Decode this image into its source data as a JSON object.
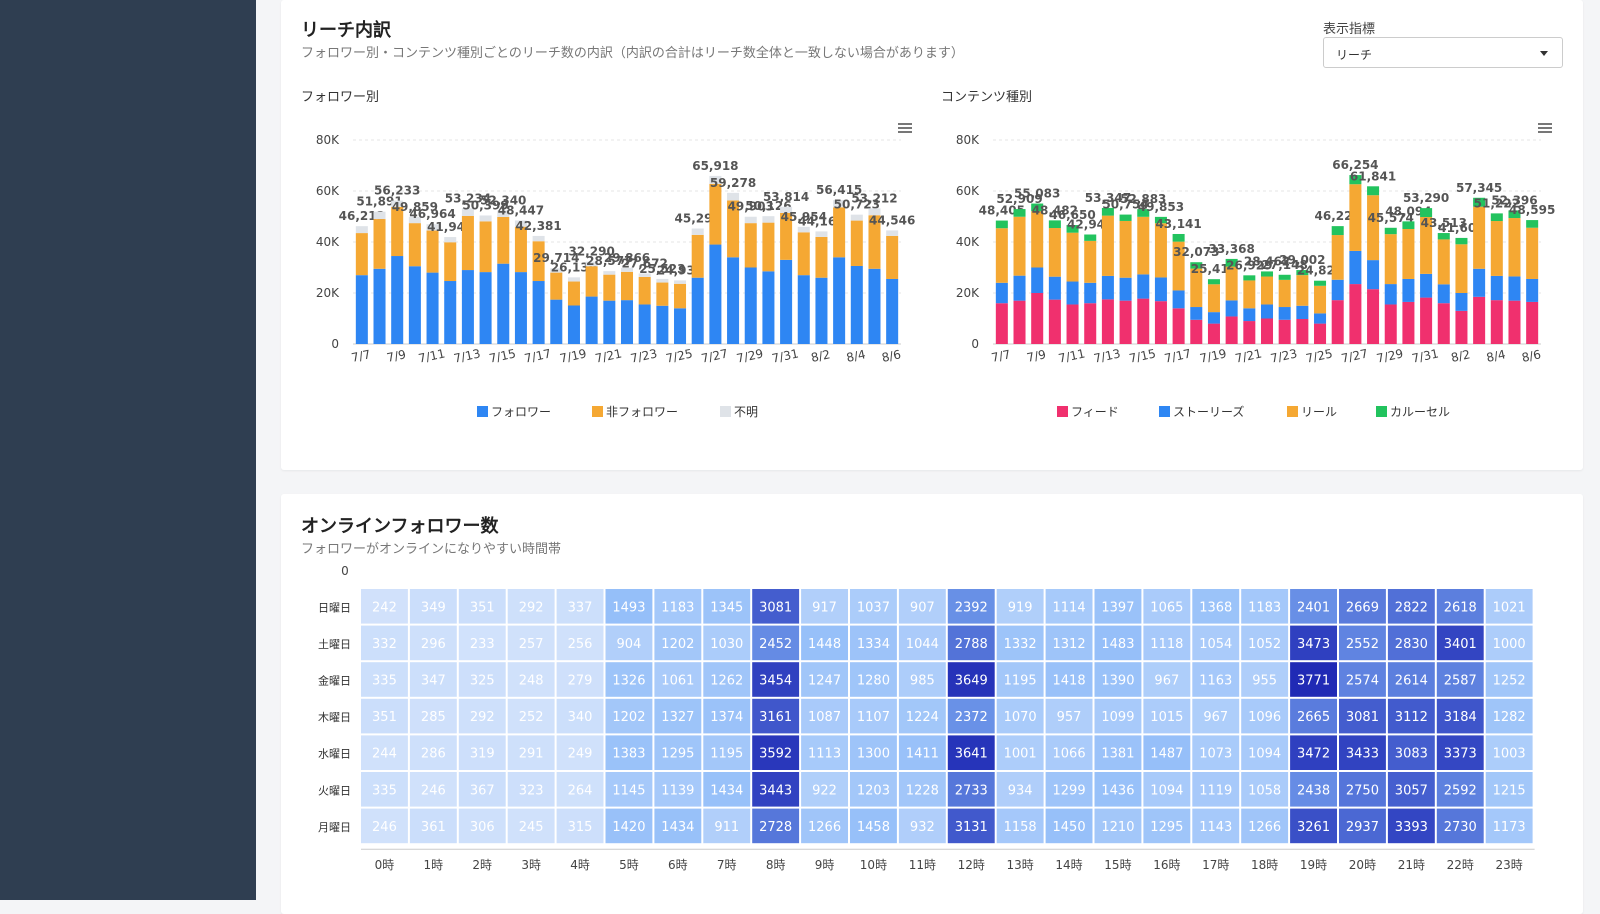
{
  "reach": {
    "title": "リーチ内訳",
    "subtitle": "フォロワー別・コンテンツ種別ごとのリーチ数の内訳（内訳の合計はリーチ数全体と一致しない場合があります）",
    "metric_label": "表示指標",
    "metric_value": "リーチ",
    "follower_chart_label": "フォロワー別",
    "content_chart_label": "コンテンツ種別"
  },
  "online": {
    "title": "オンラインフォロワー数",
    "subtitle": "フォロワーがオンラインになりやすい時間帯"
  },
  "colors": {
    "follower": "#2e86f3",
    "non_follower": "#f5a833",
    "unknown": "#dfe3e8",
    "feed": "#f0306e",
    "stories": "#2e86f3",
    "reels": "#f5a833",
    "carousel": "#22c35e"
  },
  "chart_data": [
    {
      "type": "bar",
      "stacked": true,
      "title": "フォロワー別",
      "ylim": [
        0,
        80000
      ],
      "y_ticks": [
        "0",
        "20K",
        "40K",
        "60K",
        "80K"
      ],
      "categories": [
        "7/7",
        "7/8",
        "7/9",
        "7/10",
        "7/11",
        "7/12",
        "7/13",
        "7/14",
        "7/15",
        "7/16",
        "7/17",
        "7/18",
        "7/19",
        "7/20",
        "7/21",
        "7/22",
        "7/23",
        "7/24",
        "7/25",
        "7/26",
        "7/27",
        "7/28",
        "7/29",
        "7/30",
        "7/31",
        "8/1",
        "8/2",
        "8/3",
        "8/4",
        "8/5",
        "8/6"
      ],
      "x_tick_labels": [
        "7/7",
        "7/9",
        "7/11",
        "7/13",
        "7/15",
        "7/17",
        "7/19",
        "7/21",
        "7/23",
        "7/25",
        "7/27",
        "7/29",
        "7/31",
        "8/2",
        "8/4",
        "8/6"
      ],
      "totals": [
        46212,
        51891,
        56233,
        49859,
        46964,
        41947,
        53234,
        50399,
        52340,
        48447,
        42381,
        29714,
        26139,
        32290,
        28577,
        29866,
        27672,
        25523,
        24937,
        45293,
        65918,
        59278,
        49903,
        50126,
        53814,
        45954,
        44163,
        56415,
        50723,
        53212,
        44546
      ],
      "series": [
        {
          "name": "フォロワー",
          "values": [
            27000,
            29500,
            34500,
            30500,
            28000,
            24700,
            29000,
            28200,
            31500,
            28200,
            24700,
            17400,
            15100,
            18600,
            17000,
            17200,
            15500,
            15000,
            14000,
            26000,
            39000,
            34000,
            30000,
            28500,
            33000,
            27000,
            26000,
            34000,
            30600,
            29500,
            25500
          ]
        },
        {
          "name": "非フォロワー",
          "values": [
            16500,
            19500,
            19300,
            16900,
            16500,
            15200,
            21200,
            19900,
            18300,
            17800,
            15600,
            10600,
            9400,
            11900,
            10200,
            11100,
            10800,
            9100,
            9600,
            16800,
            23800,
            22300,
            17400,
            19100,
            18400,
            16800,
            16000,
            19600,
            17800,
            21000,
            16900
          ]
        },
        {
          "name": "不明",
          "values": [
            2712,
            2891,
            2433,
            2459,
            2464,
            2047,
            3034,
            2299,
            2540,
            2447,
            2081,
            1714,
            1639,
            1790,
            1377,
            1566,
            1372,
            1423,
            1337,
            2493,
            3118,
            2978,
            2503,
            2526,
            2414,
            2154,
            2163,
            2815,
            2323,
            2712,
            2146
          ]
        }
      ],
      "legend": "bottom"
    },
    {
      "type": "bar",
      "stacked": true,
      "title": "コンテンツ種別",
      "ylim": [
        0,
        80000
      ],
      "y_ticks": [
        "0",
        "20K",
        "40K",
        "60K",
        "80K"
      ],
      "categories": [
        "7/7",
        "7/8",
        "7/9",
        "7/10",
        "7/11",
        "7/12",
        "7/13",
        "7/14",
        "7/15",
        "7/16",
        "7/17",
        "7/18",
        "7/19",
        "7/20",
        "7/21",
        "7/22",
        "7/23",
        "7/24",
        "7/25",
        "7/26",
        "7/27",
        "7/28",
        "7/29",
        "7/30",
        "7/31",
        "8/1",
        "8/2",
        "8/3",
        "8/4",
        "8/5",
        "8/6"
      ],
      "x_tick_labels": [
        "7/7",
        "7/9",
        "7/11",
        "7/13",
        "7/15",
        "7/17",
        "7/19",
        "7/21",
        "7/23",
        "7/25",
        "7/27",
        "7/29",
        "7/31",
        "8/2",
        "8/4",
        "8/6"
      ],
      "totals": [
        48405,
        52909,
        55083,
        48482,
        46650,
        42942,
        53347,
        50754,
        52883,
        49853,
        43141,
        32073,
        25418,
        33368,
        26929,
        28462,
        27148,
        29002,
        24822,
        46223,
        66254,
        61841,
        45574,
        48094,
        53290,
        43513,
        41601,
        57345,
        51222,
        52396,
        48595
      ],
      "series": [
        {
          "name": "フィード",
          "values": [
            16000,
            17000,
            20000,
            17400,
            15500,
            16000,
            17500,
            17000,
            17800,
            16800,
            14000,
            9500,
            8000,
            10800,
            9000,
            10000,
            9500,
            9800,
            8000,
            17200,
            23500,
            21500,
            15500,
            16500,
            18200,
            16000,
            13000,
            18500,
            17200,
            17000,
            16500
          ]
        },
        {
          "name": "ストーリーズ",
          "values": [
            8000,
            9800,
            10000,
            9000,
            9000,
            8000,
            9200,
            9000,
            9500,
            9300,
            7000,
            5000,
            4500,
            6300,
            5000,
            5500,
            5000,
            5200,
            4000,
            8000,
            13000,
            11400,
            8000,
            9000,
            9300,
            7400,
            7000,
            11000,
            9500,
            9500,
            9000
          ]
        },
        {
          "name": "リール",
          "values": [
            21405,
            23109,
            22083,
            19082,
            19150,
            16442,
            23647,
            22254,
            22583,
            21253,
            19141,
            15073,
            10918,
            13268,
            10929,
            10962,
            10648,
            12002,
            10822,
            17523,
            26154,
            25441,
            19574,
            19594,
            22290,
            17613,
            19101,
            24345,
            21522,
            22896,
            20095
          ]
        },
        {
          "name": "カルーセル",
          "values": [
            3000,
            3000,
            3000,
            3000,
            3000,
            2500,
            3000,
            2500,
            3000,
            2500,
            3000,
            2500,
            2000,
            3000,
            2000,
            2000,
            2000,
            2000,
            2000,
            3500,
            3600,
            3500,
            2500,
            3000,
            3500,
            2500,
            2500,
            3500,
            3000,
            3000,
            3000
          ]
        }
      ],
      "legend": "bottom"
    },
    {
      "type": "heatmap",
      "title": "オンラインフォロワー数",
      "color_scale_label": "0",
      "rows": [
        "日曜日",
        "土曜日",
        "金曜日",
        "木曜日",
        "水曜日",
        "火曜日",
        "月曜日"
      ],
      "columns": [
        "0時",
        "1時",
        "2時",
        "3時",
        "4時",
        "5時",
        "6時",
        "7時",
        "8時",
        "9時",
        "10時",
        "11時",
        "12時",
        "13時",
        "14時",
        "15時",
        "16時",
        "17時",
        "18時",
        "19時",
        "20時",
        "21時",
        "22時",
        "23時"
      ],
      "values": [
        [
          242,
          349,
          351,
          292,
          337,
          1493,
          1183,
          1345,
          3081,
          917,
          1037,
          907,
          2392,
          919,
          1114,
          1397,
          1065,
          1368,
          1183,
          2401,
          2669,
          2822,
          2618,
          1021
        ],
        [
          332,
          296,
          233,
          257,
          256,
          904,
          1202,
          1030,
          2452,
          1448,
          1334,
          1044,
          2788,
          1332,
          1312,
          1483,
          1118,
          1054,
          1052,
          3473,
          2552,
          2830,
          3401,
          1000
        ],
        [
          335,
          347,
          325,
          248,
          279,
          1326,
          1061,
          1262,
          3454,
          1247,
          1280,
          985,
          3649,
          1195,
          1418,
          1390,
          967,
          1163,
          955,
          3771,
          2574,
          2614,
          2587,
          1252
        ],
        [
          351,
          285,
          292,
          252,
          340,
          1202,
          1327,
          1374,
          3161,
          1087,
          1107,
          1224,
          2372,
          1070,
          957,
          1099,
          1015,
          967,
          1096,
          2665,
          3081,
          3112,
          3184,
          1282
        ],
        [
          244,
          286,
          319,
          291,
          249,
          1383,
          1295,
          1195,
          3592,
          1113,
          1300,
          1411,
          3641,
          1001,
          1066,
          1381,
          1487,
          1073,
          1094,
          3472,
          3433,
          3083,
          3373,
          1003
        ],
        [
          335,
          246,
          367,
          323,
          264,
          1145,
          1139,
          1434,
          3443,
          922,
          1203,
          1228,
          2733,
          934,
          1299,
          1436,
          1094,
          1119,
          1058,
          2438,
          2750,
          3057,
          2592,
          1215
        ],
        [
          246,
          361,
          306,
          245,
          315,
          1420,
          1434,
          911,
          2728,
          1266,
          1458,
          932,
          3131,
          1158,
          1450,
          1210,
          1295,
          1143,
          1266,
          3261,
          2937,
          3393,
          2730,
          1173
        ]
      ]
    }
  ]
}
